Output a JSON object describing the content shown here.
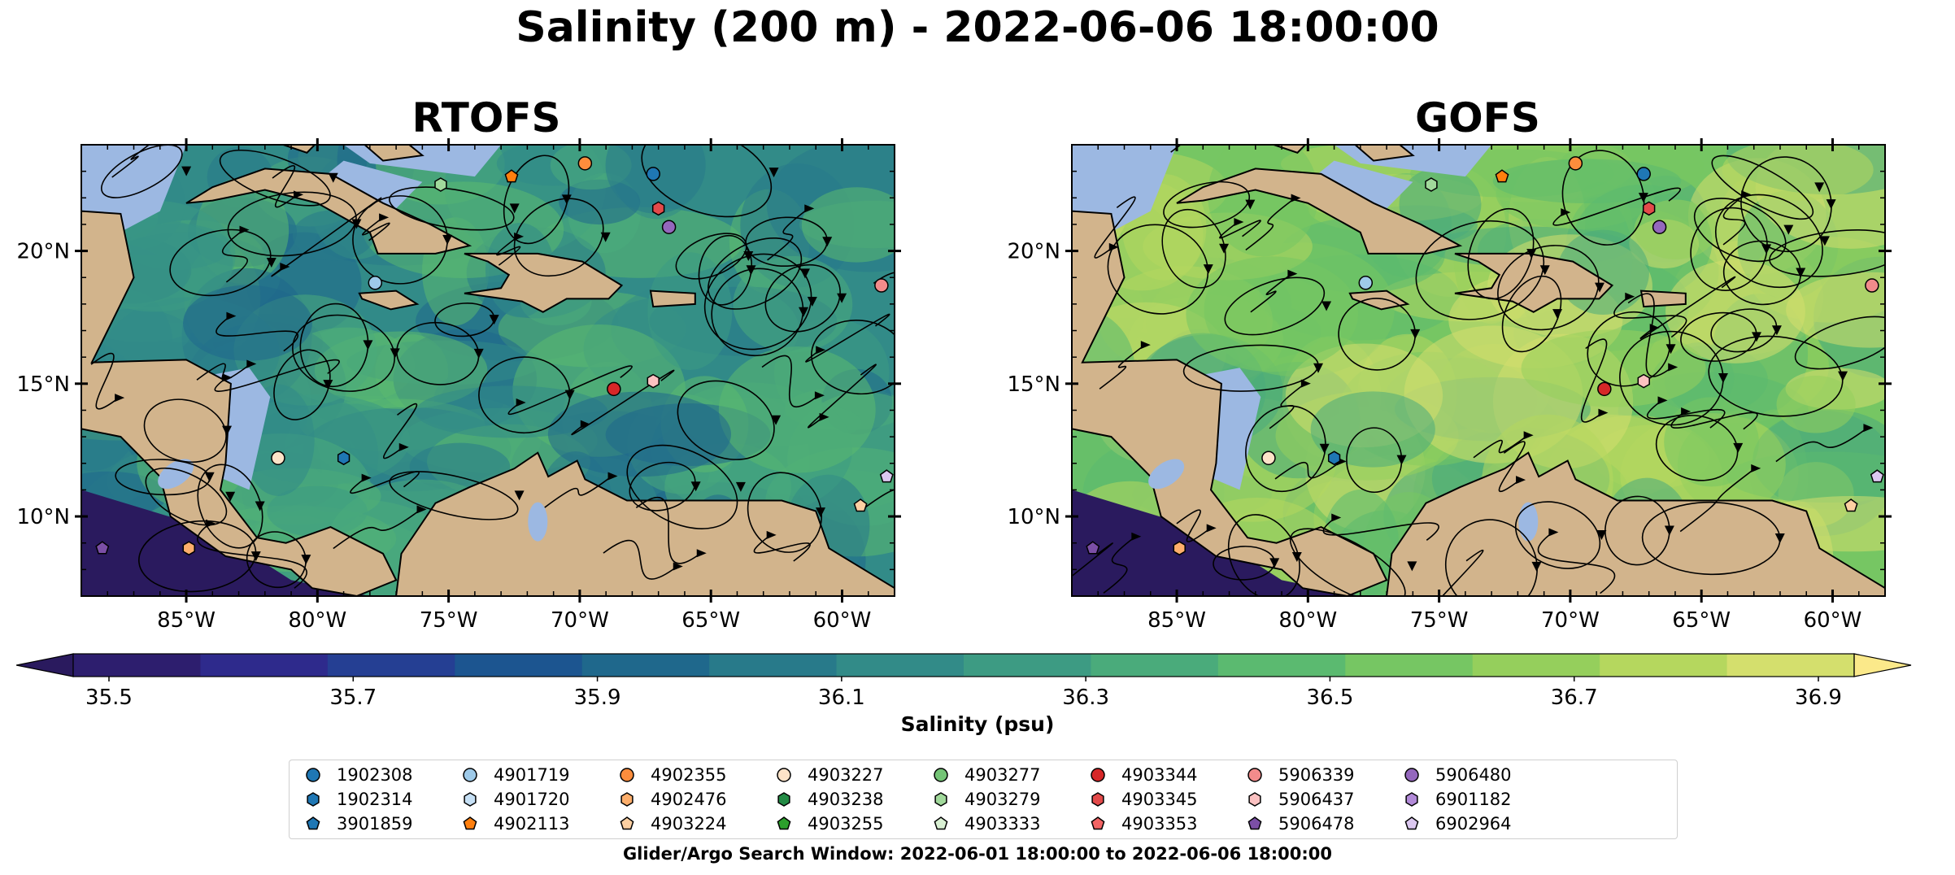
{
  "title": "Salinity (200 m) - 2022-06-06 18:00:00",
  "panels": [
    {
      "title": "RTOFS",
      "tint": "#2f7f8e"
    },
    {
      "title": "GOFS",
      "tint": "#8cc85c"
    }
  ],
  "map": {
    "extent": {
      "lon": [
        -89,
        -58
      ],
      "lat": [
        7,
        24
      ]
    },
    "lat_ticks": [
      {
        "value": 20,
        "label": "20°N"
      },
      {
        "value": 15,
        "label": "15°N"
      },
      {
        "value": 10,
        "label": "10°N"
      }
    ],
    "lon_ticks": [
      {
        "value": -85,
        "label": "85°W"
      },
      {
        "value": -80,
        "label": "80°W"
      },
      {
        "value": -75,
        "label": "75°W"
      },
      {
        "value": -70,
        "label": "70°W"
      },
      {
        "value": -65,
        "label": "65°W"
      },
      {
        "value": -60,
        "label": "60°W"
      }
    ],
    "land_color": "#d2b48c",
    "shelf_color": "#9cb8e2"
  },
  "colorbar": {
    "label": "Salinity (psu)",
    "range": [
      35.5,
      36.9
    ],
    "ticks": [
      "35.5",
      "35.7",
      "35.9",
      "36.1",
      "36.3",
      "36.5",
      "36.7",
      "36.9"
    ],
    "under_color": "#2a1a5e",
    "over_color": "#fbe98a",
    "colors": [
      "#2d1e6e",
      "#2e2a8c",
      "#253f93",
      "#1c5590",
      "#1f688c",
      "#287a8a",
      "#328b88",
      "#3d9b83",
      "#4aab7b",
      "#5bba70",
      "#76c663",
      "#95cf5c",
      "#b5d75e",
      "#d4df6d"
    ]
  },
  "legend": {
    "items": [
      {
        "id": "1902308",
        "color": "#1f77b4",
        "marker": "circle"
      },
      {
        "id": "1902314",
        "color": "#1f77b4",
        "marker": "hexagon"
      },
      {
        "id": "3901859",
        "color": "#1f77b4",
        "marker": "pentagon"
      },
      {
        "id": "4901719",
        "color": "#9ecae9",
        "marker": "circle"
      },
      {
        "id": "4901720",
        "color": "#c6e0f5",
        "marker": "hexagon"
      },
      {
        "id": "4902113",
        "color": "#ff7f0e",
        "marker": "pentagon"
      },
      {
        "id": "4902355",
        "color": "#fd8d3c",
        "marker": "circle"
      },
      {
        "id": "4902476",
        "color": "#fdae6b",
        "marker": "hexagon"
      },
      {
        "id": "4903224",
        "color": "#fdd0a2",
        "marker": "pentagon"
      },
      {
        "id": "4903227",
        "color": "#fde3c8",
        "marker": "circle"
      },
      {
        "id": "4903238",
        "color": "#238b45",
        "marker": "hexagon"
      },
      {
        "id": "4903255",
        "color": "#2ca02c",
        "marker": "pentagon"
      },
      {
        "id": "4903277",
        "color": "#74c476",
        "marker": "circle"
      },
      {
        "id": "4903279",
        "color": "#a1d99b",
        "marker": "hexagon"
      },
      {
        "id": "4903333",
        "color": "#d9f0d3",
        "marker": "pentagon"
      },
      {
        "id": "4903344",
        "color": "#d62728",
        "marker": "circle"
      },
      {
        "id": "4903345",
        "color": "#e34a4a",
        "marker": "hexagon"
      },
      {
        "id": "4903353",
        "color": "#f26464",
        "marker": "pentagon"
      },
      {
        "id": "5906339",
        "color": "#f28b8b",
        "marker": "circle"
      },
      {
        "id": "5906437",
        "color": "#fbc1c1",
        "marker": "hexagon"
      },
      {
        "id": "5906478",
        "color": "#7b4fa6",
        "marker": "pentagon"
      },
      {
        "id": "5906480",
        "color": "#9467bd",
        "marker": "circle"
      },
      {
        "id": "6901182",
        "color": "#b28ad8",
        "marker": "hexagon"
      },
      {
        "id": "6902964",
        "color": "#dcc8f0",
        "marker": "pentagon"
      }
    ]
  },
  "search_window": "Glider/Argo Search Window: 2022-06-01 18:00:00 to 2022-06-06 18:00:00",
  "profiles": [
    {
      "id": "1902308",
      "lon": -67.2,
      "lat": 22.9
    },
    {
      "id": "4901719",
      "lon": -77.8,
      "lat": 18.8
    },
    {
      "id": "4902113",
      "lon": -72.6,
      "lat": 22.8
    },
    {
      "id": "4902355",
      "lon": -69.8,
      "lat": 23.3
    },
    {
      "id": "4903227",
      "lon": -81.5,
      "lat": 12.2
    },
    {
      "id": "4903279",
      "lon": -75.3,
      "lat": 22.5
    },
    {
      "id": "4903344",
      "lon": -68.7,
      "lat": 14.8
    },
    {
      "id": "4903345",
      "lon": -67.0,
      "lat": 21.6
    },
    {
      "id": "5906339",
      "lon": -58.5,
      "lat": 18.7
    },
    {
      "id": "5906437",
      "lon": -67.2,
      "lat": 15.1
    },
    {
      "id": "5906480",
      "lon": -66.6,
      "lat": 20.9
    },
    {
      "id": "6902964",
      "lon": -58.3,
      "lat": 11.5
    },
    {
      "id": "4903224",
      "lon": -59.3,
      "lat": 10.4
    },
    {
      "id": "4902476",
      "lon": -84.9,
      "lat": 8.8
    },
    {
      "id": "5906478",
      "lon": -88.2,
      "lat": 8.8
    },
    {
      "id": "1902314",
      "lon": -79.0,
      "lat": 12.2
    }
  ]
}
